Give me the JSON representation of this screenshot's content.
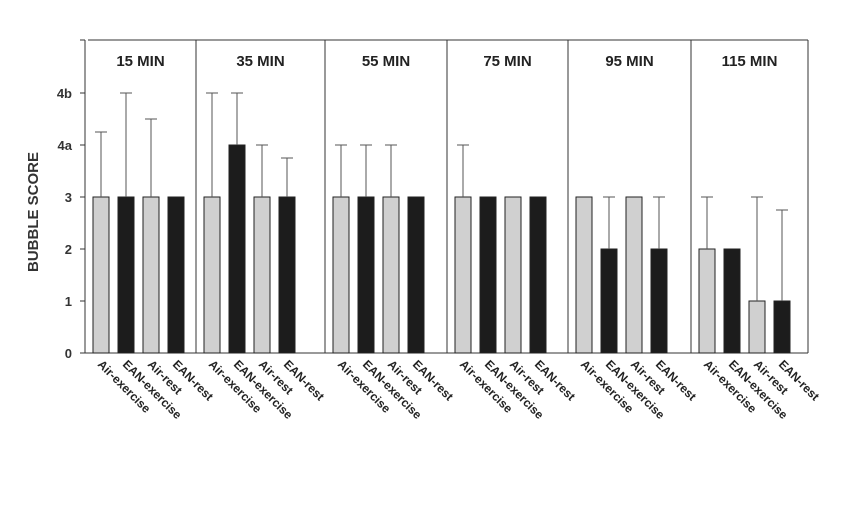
{
  "chart_data": {
    "type": "bar",
    "ylabel": "BUBBLE SCORE",
    "y_ticks": [
      {
        "value": 0,
        "label": "0"
      },
      {
        "value": 1,
        "label": "1"
      },
      {
        "value": 2,
        "label": "2"
      },
      {
        "value": 3,
        "label": "3"
      },
      {
        "value": 4,
        "label": "4a"
      },
      {
        "value": 5,
        "label": "4b"
      }
    ],
    "ylim": [
      0,
      6
    ],
    "categories": [
      "Air-exercise",
      "EAN-exercise",
      "Air-rest",
      "EAN-rest"
    ],
    "colors": {
      "air": "#d0d0d0",
      "ean": "#1c1c1c",
      "axis": "#333333"
    },
    "panels": [
      {
        "title": "15 MIN",
        "values": [
          3,
          3,
          3,
          3
        ],
        "error_upper": [
          4.25,
          5,
          4.5,
          null
        ]
      },
      {
        "title": "35 MIN",
        "values": [
          3,
          4,
          3,
          3
        ],
        "error_upper": [
          5,
          5,
          4,
          3.75
        ]
      },
      {
        "title": "55 MIN",
        "values": [
          3,
          3,
          3,
          3
        ],
        "error_upper": [
          4,
          4,
          4,
          null
        ]
      },
      {
        "title": "75 MIN",
        "values": [
          3,
          3,
          3,
          3
        ],
        "error_upper": [
          4,
          null,
          null,
          null
        ]
      },
      {
        "title": "95 MIN",
        "values": [
          3,
          2,
          3,
          2
        ],
        "error_upper": [
          null,
          3,
          null,
          3
        ]
      },
      {
        "title": "115 MIN",
        "values": [
          2,
          2,
          1,
          1
        ],
        "error_upper": [
          3,
          null,
          3,
          2.75
        ]
      }
    ]
  }
}
